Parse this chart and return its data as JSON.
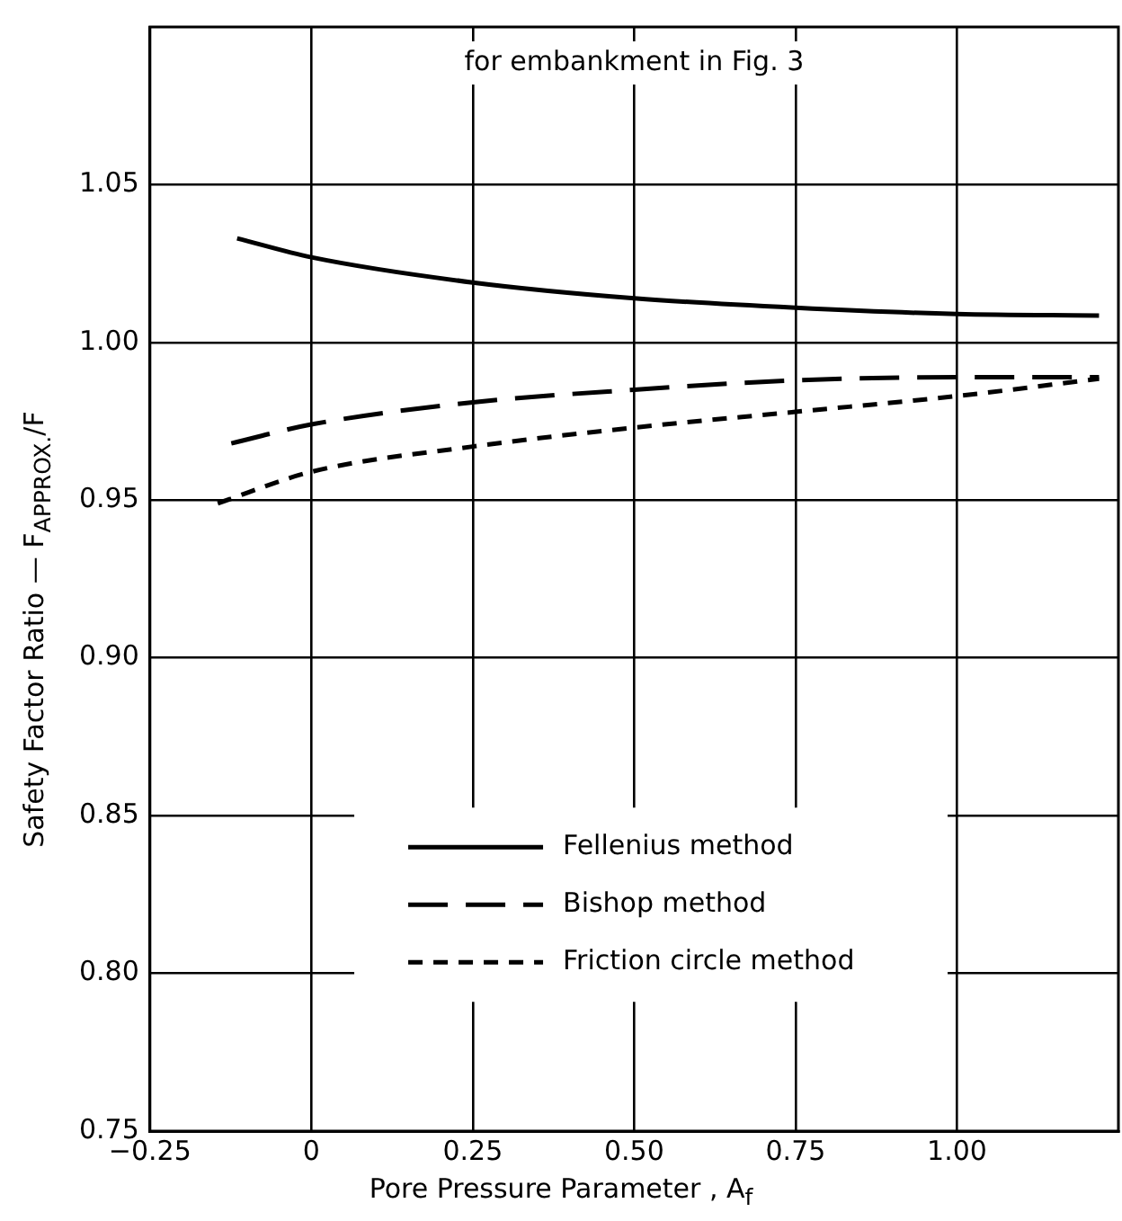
{
  "chart_data": {
    "type": "line",
    "title": "for embankment in Fig. 3",
    "xlabel": "Pore Pressure Parameter , A$_{f}$",
    "ylabel": "Safety Factor Ratio — F$_{APPROX.}$/F",
    "xlim": [
      -0.25,
      1.25
    ],
    "ylim": [
      0.75,
      1.1
    ],
    "xticks": [
      {
        "value": -0.25,
        "label": "−0.25"
      },
      0,
      {
        "value": 0.25,
        "label": "0.25"
      },
      {
        "value": 0.5,
        "label": "0.50"
      },
      {
        "value": 0.75,
        "label": "0.75"
      },
      {
        "value": 1,
        "label": "1.00"
      }
    ],
    "yticks": [
      {
        "value": 0.75,
        "label": "0.75"
      },
      {
        "value": 0.8,
        "label": "0.80"
      },
      {
        "value": 0.85,
        "label": "0.85"
      },
      {
        "value": 0.9,
        "label": "0.90"
      },
      {
        "value": 0.95,
        "label": "0.95"
      },
      {
        "value": 1,
        "label": "1.00"
      },
      {
        "value": 1.05,
        "label": "1.05"
      }
    ],
    "grid": true,
    "legend": "bottom",
    "marker": "none",
    "series": [
      {
        "name": "Fellenius method",
        "color": "#000000",
        "line_style": "solid",
        "x": [
          -0.115,
          0,
          0.25,
          0.5,
          0.75,
          1,
          1.22
        ],
        "values": [
          1.033,
          1.027,
          1.019,
          1.014,
          1.011,
          1.009,
          1.0085
        ]
      },
      {
        "name": "Bishop method",
        "color": "#000000",
        "line_style": "dashed",
        "x": [
          -0.124,
          0,
          0.25,
          0.5,
          0.75,
          1,
          1.22
        ],
        "values": [
          0.968,
          0.974,
          0.981,
          0.985,
          0.988,
          0.989,
          0.989
        ]
      },
      {
        "name": "Friction circle method",
        "color": "#000000",
        "line_style": "dotted",
        "x": [
          -0.145,
          0,
          0.25,
          0.5,
          0.75,
          1,
          1.22
        ],
        "values": [
          0.949,
          0.959,
          0.967,
          0.973,
          0.978,
          0.983,
          0.9885
        ]
      }
    ]
  }
}
